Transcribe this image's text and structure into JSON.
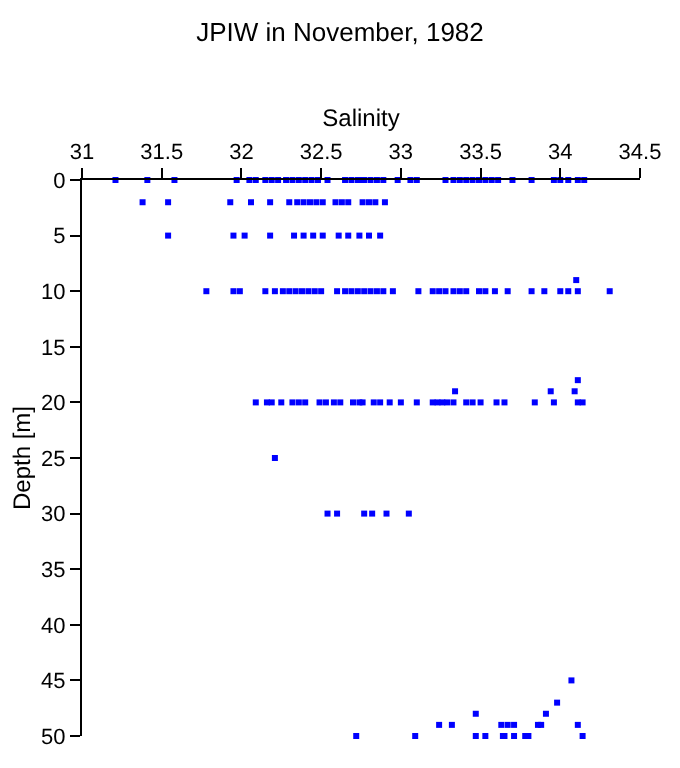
{
  "chart_data": {
    "type": "scatter",
    "title": "JPIW in November, 1982",
    "xlabel": "Salinity",
    "ylabel": "Depth [m]",
    "xlim": [
      31,
      34.5
    ],
    "xticks": [
      31,
      31.5,
      32,
      32.5,
      33,
      33.5,
      34,
      34.5
    ],
    "ylim": [
      50,
      0
    ],
    "yticks": [
      0,
      5,
      10,
      15,
      20,
      25,
      30,
      35,
      40,
      45,
      50
    ],
    "marker": "square",
    "series": [
      {
        "color": "#0000ff",
        "x": [
          31.21,
          31.41,
          31.58,
          31.97,
          32.05,
          32.09,
          32.15,
          32.19,
          32.23,
          32.28,
          32.32,
          32.36,
          32.4,
          32.44,
          32.48,
          32.54,
          32.65,
          32.69,
          32.73,
          32.75,
          32.77,
          32.81,
          32.85,
          32.89,
          32.98,
          33.06,
          33.1,
          33.28,
          33.33,
          33.37,
          33.41,
          33.45,
          33.49,
          33.53,
          33.57,
          33.61,
          33.7,
          33.82,
          33.96,
          34.0,
          34.05,
          34.11,
          34.15,
          31.38,
          31.54,
          31.93,
          32.06,
          32.18,
          32.3,
          32.35,
          32.39,
          32.43,
          32.47,
          32.51,
          32.59,
          32.63,
          32.67,
          32.76,
          32.8,
          32.84,
          32.9,
          31.54,
          31.95,
          32.02,
          32.18,
          32.33,
          32.39,
          32.45,
          32.51,
          32.61,
          32.67,
          32.74,
          32.8,
          32.87,
          34.1,
          31.78,
          31.95,
          31.99,
          32.15,
          32.21,
          32.26,
          32.3,
          32.34,
          32.38,
          32.42,
          32.46,
          32.5,
          32.6,
          32.65,
          32.69,
          32.73,
          32.77,
          32.81,
          32.85,
          32.89,
          32.95,
          33.11,
          33.2,
          33.24,
          33.28,
          33.33,
          33.37,
          33.41,
          33.49,
          33.53,
          33.59,
          33.67,
          33.82,
          33.9,
          34.0,
          34.05,
          34.11,
          34.31,
          32.09,
          32.16,
          32.19,
          32.25,
          32.32,
          32.36,
          32.4,
          32.49,
          32.53,
          32.58,
          32.62,
          32.7,
          32.74,
          32.76,
          32.83,
          32.87,
          32.93,
          33.0,
          33.1,
          33.2,
          33.23,
          33.26,
          33.29,
          33.33,
          33.41,
          33.45,
          33.5,
          33.6,
          33.65,
          33.84,
          33.96,
          34.11,
          34.14,
          33.34,
          33.94,
          34.09,
          34.11,
          32.21,
          32.54,
          32.6,
          32.77,
          32.82,
          32.91,
          33.05,
          34.07,
          33.98,
          33.47,
          33.91,
          33.24,
          33.32,
          33.63,
          33.67,
          33.71,
          33.86,
          33.88,
          34.11,
          32.72,
          33.09,
          33.47,
          33.53,
          33.64,
          33.65,
          33.71,
          33.78,
          33.8,
          34.14
        ],
        "values": [
          0,
          0,
          0,
          0,
          0,
          0,
          0,
          0,
          0,
          0,
          0,
          0,
          0,
          0,
          0,
          0,
          0,
          0,
          0,
          0,
          0,
          0,
          0,
          0,
          0,
          0,
          0,
          0,
          0,
          0,
          0,
          0,
          0,
          0,
          0,
          0,
          0,
          0,
          0,
          0,
          0,
          0,
          0,
          2,
          2,
          2,
          2,
          2,
          2,
          2,
          2,
          2,
          2,
          2,
          2,
          2,
          2,
          2,
          2,
          2,
          2,
          5,
          5,
          5,
          5,
          5,
          5,
          5,
          5,
          5,
          5,
          5,
          5,
          5,
          9,
          10,
          10,
          10,
          10,
          10,
          10,
          10,
          10,
          10,
          10,
          10,
          10,
          10,
          10,
          10,
          10,
          10,
          10,
          10,
          10,
          10,
          10,
          10,
          10,
          10,
          10,
          10,
          10,
          10,
          10,
          10,
          10,
          10,
          10,
          10,
          10,
          10,
          10,
          20,
          20,
          20,
          20,
          20,
          20,
          20,
          20,
          20,
          20,
          20,
          20,
          20,
          20,
          20,
          20,
          20,
          20,
          20,
          20,
          20,
          20,
          20,
          20,
          20,
          20,
          20,
          20,
          20,
          20,
          20,
          20,
          20,
          19,
          19,
          19,
          18,
          25,
          30,
          30,
          30,
          30,
          30,
          30,
          45,
          47,
          48,
          48,
          49,
          49,
          49,
          49,
          49,
          49,
          49,
          49,
          50,
          50,
          50,
          50,
          50,
          50,
          50,
          50,
          50,
          50
        ]
      }
    ]
  }
}
